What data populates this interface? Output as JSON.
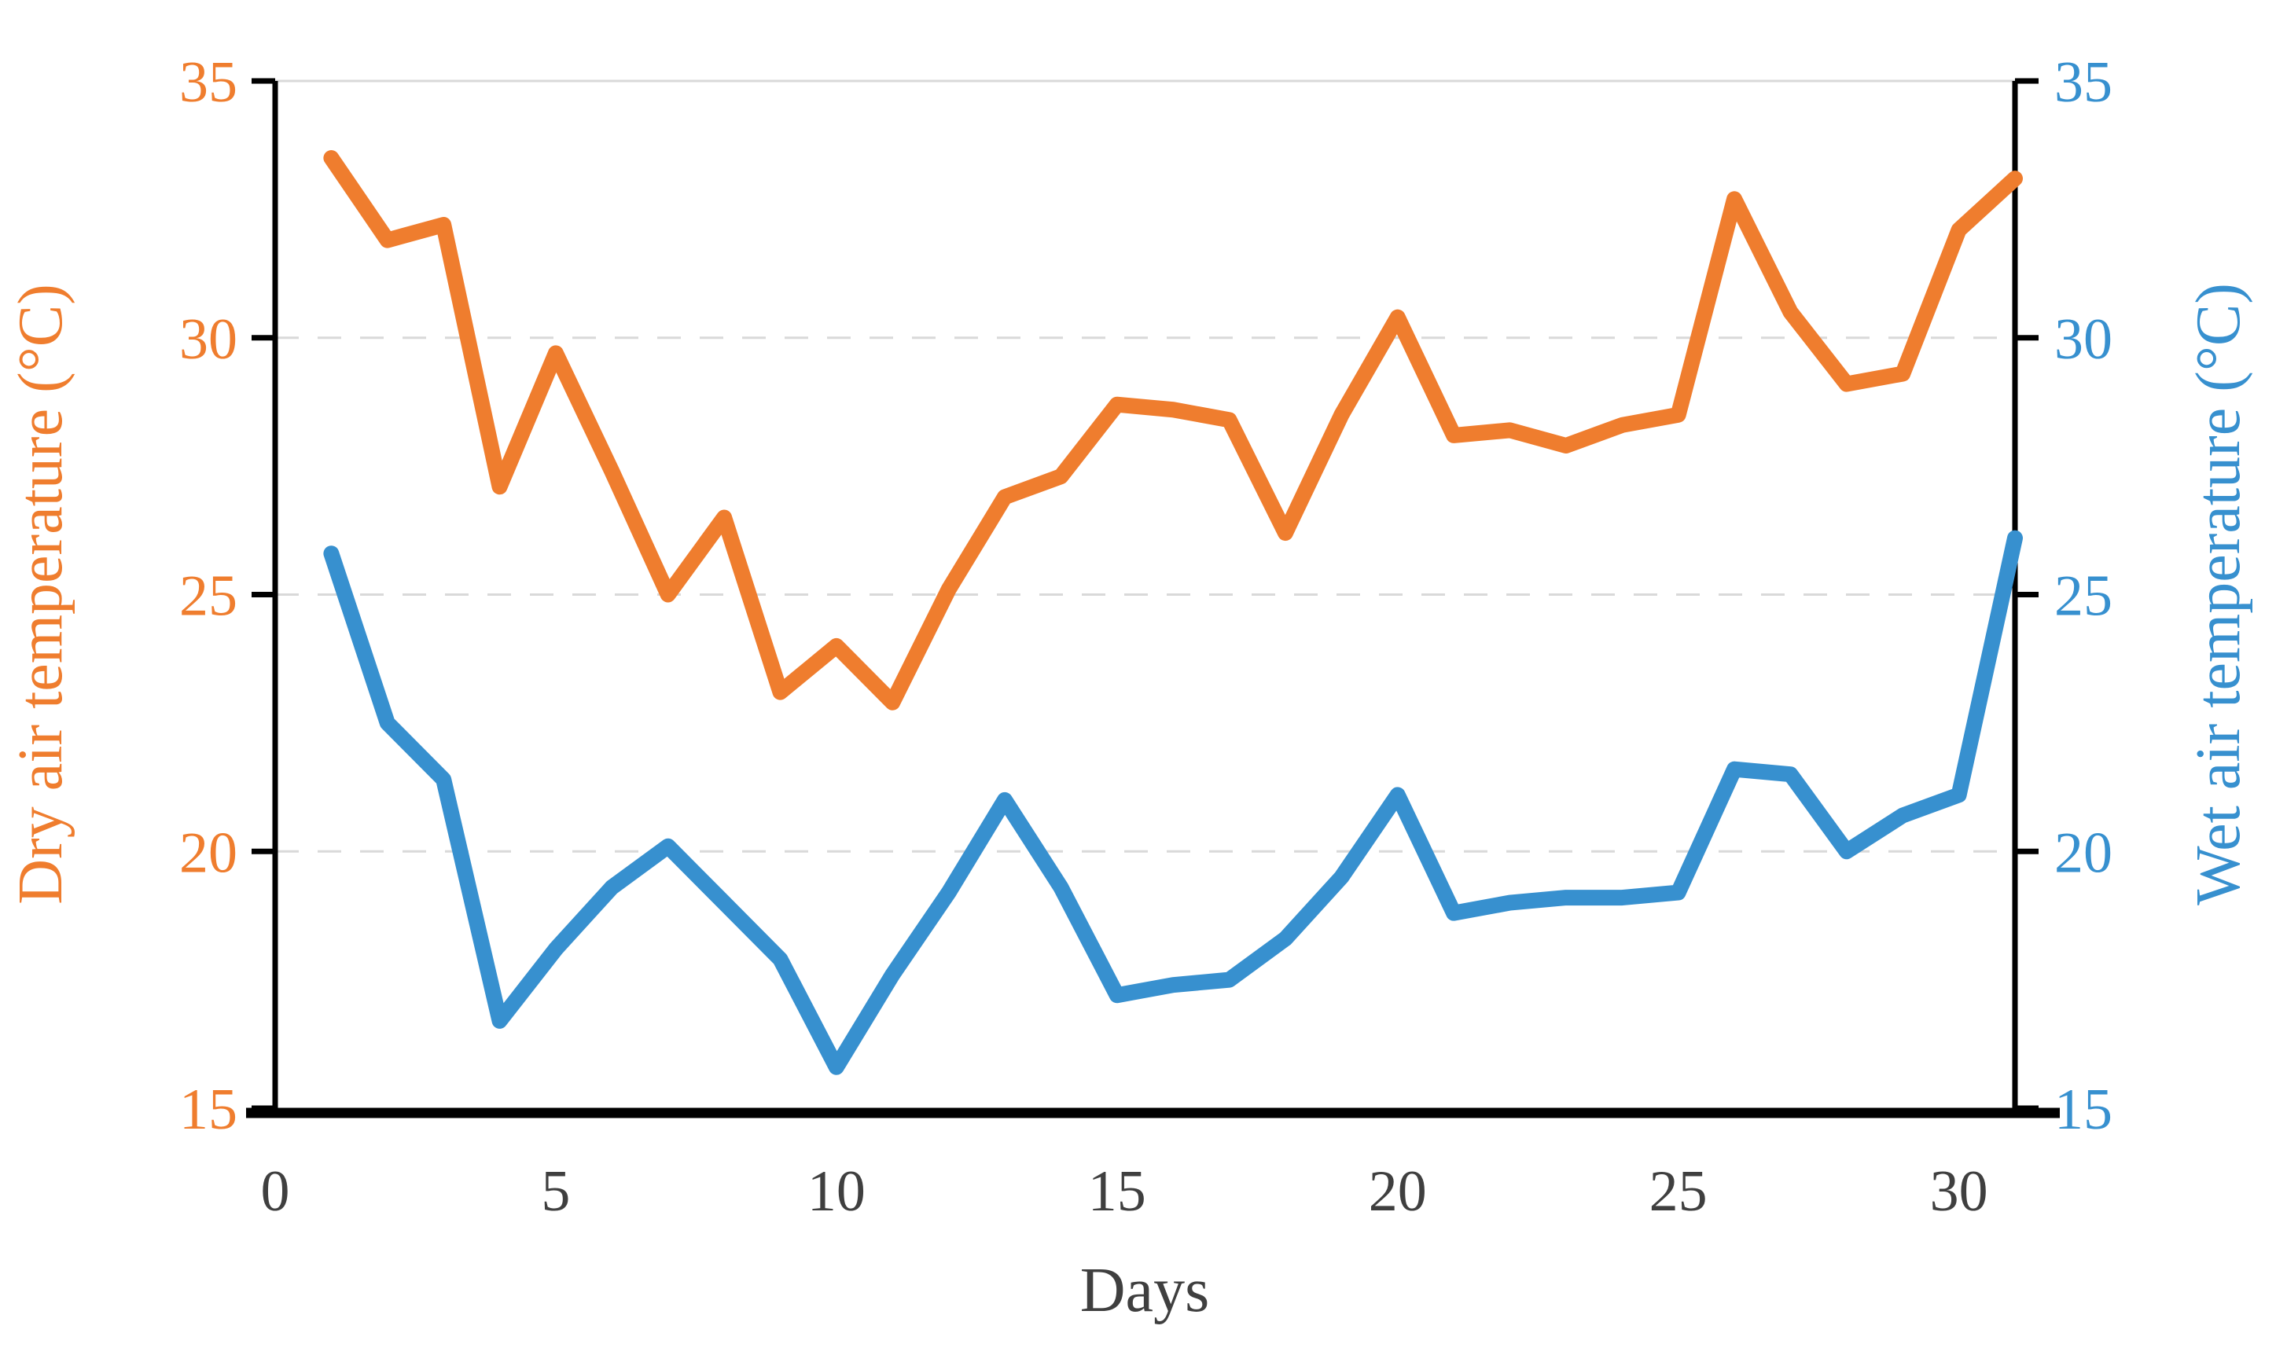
{
  "chart_data": {
    "type": "line",
    "title": "",
    "xlabel": "Days",
    "x": [
      1,
      2,
      3,
      4,
      5,
      6,
      7,
      8,
      9,
      10,
      11,
      12,
      13,
      14,
      15,
      16,
      17,
      18,
      19,
      20,
      21,
      22,
      23,
      24,
      25,
      26,
      27,
      28,
      29,
      30,
      31
    ],
    "series": [
      {
        "name": "Dry air temperature (°C)",
        "axis": "left",
        "color": "#EF7D2E",
        "values": [
          33.5,
          31.9,
          32.2,
          27.1,
          29.7,
          27.4,
          25.0,
          26.5,
          23.1,
          24.0,
          22.9,
          25.1,
          26.9,
          27.3,
          28.7,
          28.6,
          28.4,
          26.2,
          28.5,
          30.4,
          28.1,
          28.2,
          27.9,
          28.3,
          28.5,
          32.7,
          30.5,
          29.1,
          29.3,
          32.1,
          33.1
        ]
      },
      {
        "name": "Wet air temperature (°C)",
        "axis": "right",
        "color": "#3790CF",
        "values": [
          25.8,
          22.5,
          21.4,
          16.7,
          18.1,
          19.3,
          20.1,
          19.0,
          17.9,
          15.8,
          17.6,
          19.2,
          21.0,
          19.3,
          17.2,
          17.4,
          17.5,
          18.3,
          19.5,
          21.1,
          18.8,
          19.0,
          19.1,
          19.1,
          19.2,
          21.6,
          21.5,
          20.0,
          20.7,
          21.1,
          26.1
        ]
      }
    ],
    "left_axis": {
      "label": "Dry air temperature (°C)",
      "color": "#EF7D2E",
      "ticks": [
        35,
        30,
        25,
        20,
        15
      ],
      "range": [
        15,
        35
      ]
    },
    "right_axis": {
      "label": "Wet air temperature (°C)",
      "color": "#3790CF",
      "ticks": [
        35,
        30,
        25,
        20,
        15
      ],
      "range": [
        15,
        35
      ]
    },
    "x_axis": {
      "label": "Days",
      "color": "#3F3F3F",
      "ticks": [
        0,
        5,
        10,
        15,
        20,
        25,
        30
      ],
      "range": [
        0,
        31
      ]
    },
    "grid": {
      "horizontal_dashed_at": [
        30,
        25,
        20
      ],
      "solid_top_at": 35,
      "color": "#D9D9D9"
    },
    "legend": "none"
  }
}
